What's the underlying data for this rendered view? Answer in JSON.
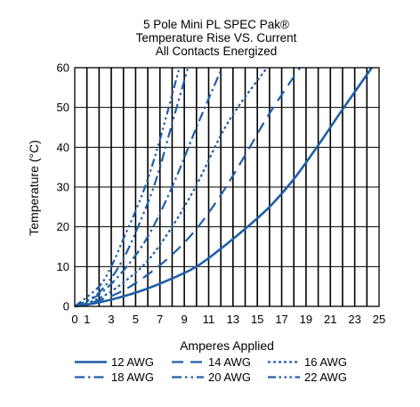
{
  "chart_data": {
    "type": "line",
    "title_lines": [
      "5 Pole Mini PL SPEC Pak®",
      "Temperature Rise VS. Current",
      "All Contacts Energized"
    ],
    "xlabel": "Amperes Applied",
    "ylabel": "Temperature (°C)",
    "xlim": [
      0,
      25
    ],
    "ylim": [
      0,
      60
    ],
    "x_ticks": [
      0,
      1,
      3,
      5,
      7,
      9,
      11,
      13,
      15,
      17,
      19,
      21,
      23,
      25
    ],
    "y_ticks": [
      0,
      10,
      20,
      30,
      40,
      50,
      60
    ],
    "grid": "vertical lines at every 1 A, horizontal lines at every 10 °C",
    "legend_position": "bottom",
    "series": [
      {
        "name": "12 AWG",
        "color": "#1f5fa8",
        "style": "solid",
        "x": [
          0,
          2,
          4,
          6,
          8,
          10,
          12,
          14,
          16,
          18,
          20,
          22,
          24.4
        ],
        "y": [
          0,
          1,
          2.5,
          4.5,
          7,
          10,
          14.5,
          19.5,
          25,
          32,
          40.5,
          49.5,
          60
        ]
      },
      {
        "name": "14 AWG",
        "color": "#1f5fa8",
        "style": "dash",
        "x": [
          0,
          2,
          4,
          6,
          8,
          10,
          12,
          14,
          16,
          18.5
        ],
        "y": [
          0,
          1.5,
          4,
          8,
          13,
          19.5,
          28,
          38,
          48.5,
          60
        ]
      },
      {
        "name": "16 AWG",
        "color": "#1f5fa8",
        "style": "dot",
        "x": [
          0,
          2,
          4,
          6,
          8,
          10,
          12,
          13.5,
          15.8
        ],
        "y": [
          0,
          2,
          6,
          11.5,
          20,
          30.5,
          43,
          50.5,
          60
        ]
      },
      {
        "name": "18 AWG",
        "color": "#1f5fa8",
        "style": "dash-dot",
        "x": [
          0,
          2,
          4,
          6,
          8,
          10,
          12.1
        ],
        "y": [
          0,
          3,
          9,
          17.5,
          30,
          45,
          60
        ]
      },
      {
        "name": "20 AWG",
        "color": "#1f5fa8",
        "style": "dash-dot-dot",
        "x": [
          0,
          2,
          4,
          6,
          7,
          8,
          9.3
        ],
        "y": [
          0,
          3.5,
          12,
          26,
          35,
          46,
          60
        ]
      },
      {
        "name": "22 AWG",
        "color": "#1f5fa8",
        "style": "dash-dot-dot-dot",
        "x": [
          0,
          2,
          3,
          4,
          5,
          6,
          7,
          8.6
        ],
        "y": [
          0,
          5,
          10,
          17,
          24,
          32,
          42,
          60
        ]
      }
    ]
  }
}
